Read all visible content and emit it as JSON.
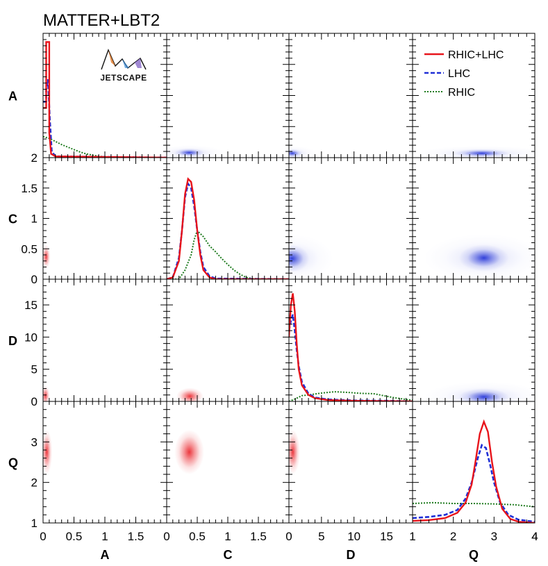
{
  "figure_title": "MATTER+LBT2",
  "logo_text": "JETSCAPE",
  "colors": {
    "rhic_lhc": "#e8141b",
    "lhc": "#1f2fd6",
    "rhic": "#1d7a1d"
  },
  "chart_data": {
    "type": "corner",
    "parameters": [
      "A",
      "C",
      "D",
      "Q"
    ],
    "ranges": {
      "A": [
        0,
        2
      ],
      "C": [
        0,
        2
      ],
      "D": [
        0,
        19
      ],
      "Q": [
        1,
        4
      ]
    },
    "tick_labels": {
      "A": [
        "0",
        "0.5",
        "1",
        "1.5"
      ],
      "C": [
        "0",
        "0.5",
        "1",
        "1.5"
      ],
      "D": [
        "0",
        "5",
        "10",
        "15"
      ],
      "Q": [
        "1",
        "2",
        "3",
        "4"
      ]
    },
    "tick_values": {
      "A": [
        0,
        0.5,
        1,
        1.5
      ],
      "C": [
        0,
        0.5,
        1,
        1.5
      ],
      "D": [
        0,
        5,
        10,
        15
      ],
      "Q": [
        1,
        2,
        3,
        4
      ]
    },
    "diag_y_ticks": {
      "C": {
        "values": [
          0,
          0.5,
          1,
          1.5,
          2
        ],
        "labels": [
          "0",
          "0.5",
          "1",
          "1.5",
          "2"
        ],
        "ymax": 2
      },
      "D": {
        "values": [
          0,
          5,
          10,
          15
        ],
        "labels": [
          "0",
          "5",
          "10",
          "15"
        ],
        "ymax": 19
      },
      "Q": {
        "values": [
          1,
          2,
          3
        ],
        "labels": [
          "1",
          "2",
          "3"
        ],
        "ymin": 1,
        "ymax": 4
      }
    },
    "legend": [
      {
        "key": "rhic_lhc",
        "label": "RHIC+LHC",
        "style": "solid"
      },
      {
        "key": "lhc",
        "label": "LHC",
        "style": "dashed"
      },
      {
        "key": "rhic",
        "label": "RHIC",
        "style": "dotted"
      }
    ],
    "diagonal": {
      "A": {
        "ymax": 10,
        "rhic_lhc": [
          [
            0,
            4
          ],
          [
            0.05,
            4
          ],
          [
            0.05,
            9.3
          ],
          [
            0.1,
            9.3
          ],
          [
            0.1,
            2
          ],
          [
            0.13,
            0.3
          ],
          [
            0.2,
            0.1
          ],
          [
            2,
            0
          ]
        ],
        "lhc": [
          [
            0,
            4.5
          ],
          [
            0.05,
            4.5
          ],
          [
            0.05,
            5.5
          ],
          [
            0.08,
            6.3
          ],
          [
            0.11,
            3
          ],
          [
            0.14,
            0.5
          ],
          [
            0.2,
            0.1
          ],
          [
            2,
            0
          ]
        ],
        "rhic": [
          [
            0,
            1.7
          ],
          [
            0.1,
            1.55
          ],
          [
            0.2,
            1.3
          ],
          [
            0.3,
            1.05
          ],
          [
            0.4,
            0.85
          ],
          [
            0.5,
            0.65
          ],
          [
            0.6,
            0.45
          ],
          [
            0.7,
            0.3
          ],
          [
            0.8,
            0.2
          ],
          [
            0.9,
            0.12
          ],
          [
            1.0,
            0.06
          ],
          [
            1.1,
            0.03
          ],
          [
            1.3,
            0.01
          ],
          [
            2,
            0
          ]
        ]
      },
      "C": {
        "rhic_lhc": [
          [
            0,
            0
          ],
          [
            0.1,
            0.03
          ],
          [
            0.2,
            0.3
          ],
          [
            0.25,
            0.8
          ],
          [
            0.3,
            1.4
          ],
          [
            0.35,
            1.65
          ],
          [
            0.4,
            1.6
          ],
          [
            0.45,
            1.3
          ],
          [
            0.5,
            0.8
          ],
          [
            0.55,
            0.4
          ],
          [
            0.6,
            0.15
          ],
          [
            0.7,
            0.03
          ],
          [
            0.8,
            0
          ],
          [
            2,
            0
          ]
        ],
        "lhc": [
          [
            0,
            0
          ],
          [
            0.1,
            0.03
          ],
          [
            0.2,
            0.35
          ],
          [
            0.25,
            0.8
          ],
          [
            0.3,
            1.35
          ],
          [
            0.35,
            1.57
          ],
          [
            0.4,
            1.5
          ],
          [
            0.45,
            1.2
          ],
          [
            0.5,
            0.8
          ],
          [
            0.55,
            0.45
          ],
          [
            0.6,
            0.2
          ],
          [
            0.7,
            0.05
          ],
          [
            0.8,
            0.01
          ],
          [
            2,
            0
          ]
        ],
        "rhic": [
          [
            0,
            0
          ],
          [
            0.2,
            0
          ],
          [
            0.3,
            0.15
          ],
          [
            0.4,
            0.4
          ],
          [
            0.45,
            0.65
          ],
          [
            0.5,
            0.8
          ],
          [
            0.6,
            0.7
          ],
          [
            0.7,
            0.55
          ],
          [
            0.8,
            0.45
          ],
          [
            0.9,
            0.34
          ],
          [
            1.0,
            0.24
          ],
          [
            1.1,
            0.15
          ],
          [
            1.2,
            0.08
          ],
          [
            1.3,
            0.03
          ],
          [
            1.4,
            0.01
          ],
          [
            1.6,
            0
          ],
          [
            2,
            0
          ]
        ]
      },
      "D": {
        "rhic_lhc": [
          [
            0,
            10
          ],
          [
            0.3,
            15
          ],
          [
            0.6,
            16.8
          ],
          [
            0.9,
            14
          ],
          [
            1.2,
            9
          ],
          [
            1.5,
            5
          ],
          [
            2,
            2.5
          ],
          [
            3,
            1
          ],
          [
            4,
            0.5
          ],
          [
            6,
            0.2
          ],
          [
            10,
            0.1
          ],
          [
            19,
            0
          ]
        ],
        "lhc": [
          [
            0,
            11
          ],
          [
            0.3,
            12.5
          ],
          [
            0.6,
            13.5
          ],
          [
            0.9,
            11
          ],
          [
            1.2,
            8
          ],
          [
            1.5,
            5.5
          ],
          [
            2,
            3
          ],
          [
            3,
            1.2
          ],
          [
            4,
            0.6
          ],
          [
            6,
            0.3
          ],
          [
            10,
            0.15
          ],
          [
            15,
            0.1
          ],
          [
            19,
            0
          ]
        ],
        "rhic": [
          [
            0,
            0
          ],
          [
            1,
            0.4
          ],
          [
            2,
            0.9
          ],
          [
            3,
            1.0
          ],
          [
            5,
            1.3
          ],
          [
            7,
            1.5
          ],
          [
            9,
            1.4
          ],
          [
            11,
            1.25
          ],
          [
            13,
            1.2
          ],
          [
            14,
            1.0
          ],
          [
            15,
            0.8
          ],
          [
            16,
            0.6
          ],
          [
            17,
            0.45
          ],
          [
            18,
            0.3
          ],
          [
            19,
            0.2
          ]
        ]
      },
      "Q": {
        "rhic_lhc": [
          [
            1,
            1.05
          ],
          [
            1.4,
            1.07
          ],
          [
            1.8,
            1.12
          ],
          [
            2.1,
            1.25
          ],
          [
            2.3,
            1.5
          ],
          [
            2.45,
            1.95
          ],
          [
            2.55,
            2.55
          ],
          [
            2.65,
            3.2
          ],
          [
            2.75,
            3.5
          ],
          [
            2.85,
            3.25
          ],
          [
            2.95,
            2.5
          ],
          [
            3.05,
            1.9
          ],
          [
            3.2,
            1.35
          ],
          [
            3.4,
            1.1
          ],
          [
            3.6,
            1.03
          ],
          [
            4,
            1.0
          ]
        ],
        "lhc": [
          [
            1,
            1.12
          ],
          [
            1.4,
            1.15
          ],
          [
            1.8,
            1.2
          ],
          [
            2.1,
            1.32
          ],
          [
            2.3,
            1.6
          ],
          [
            2.45,
            2.0
          ],
          [
            2.6,
            2.6
          ],
          [
            2.7,
            2.92
          ],
          [
            2.8,
            2.85
          ],
          [
            2.9,
            2.45
          ],
          [
            3.0,
            2.0
          ],
          [
            3.15,
            1.5
          ],
          [
            3.35,
            1.2
          ],
          [
            3.6,
            1.08
          ],
          [
            4,
            1.03
          ]
        ],
        "rhic": [
          [
            1,
            1.48
          ],
          [
            1.5,
            1.5
          ],
          [
            2,
            1.48
          ],
          [
            2.5,
            1.48
          ],
          [
            3,
            1.47
          ],
          [
            3.5,
            1.45
          ],
          [
            4,
            1.4
          ]
        ]
      }
    },
    "posteriors_2d": [
      {
        "x": "A",
        "y": "C",
        "mean": [
          0.05,
          0.37
        ],
        "sd": [
          0.03,
          0.09
        ],
        "series": "rhic_lhc"
      },
      {
        "x": "A",
        "y": "D",
        "mean": [
          0.04,
          0.9
        ],
        "sd": [
          0.03,
          0.7
        ],
        "series": "rhic_lhc"
      },
      {
        "x": "A",
        "y": "Q",
        "mean": [
          0.06,
          2.75
        ],
        "sd": [
          0.04,
          0.25
        ],
        "series": "rhic_lhc"
      },
      {
        "x": "C",
        "y": "D",
        "mean": [
          0.38,
          0.8
        ],
        "sd": [
          0.1,
          0.6
        ],
        "series": "rhic_lhc"
      },
      {
        "x": "C",
        "y": "Q",
        "mean": [
          0.37,
          2.75
        ],
        "sd": [
          0.11,
          0.25
        ],
        "series": "rhic_lhc"
      },
      {
        "x": "D",
        "y": "Q",
        "mean": [
          0.6,
          2.75
        ],
        "sd": [
          0.5,
          0.25
        ],
        "series": "rhic_lhc"
      },
      {
        "x": "C",
        "y": "A",
        "mean": [
          0.37,
          0.08
        ],
        "sd": [
          0.11,
          0.03
        ],
        "series": "lhc"
      },
      {
        "x": "D",
        "y": "A",
        "mean": [
          0.5,
          0.07
        ],
        "sd": [
          0.7,
          0.03
        ],
        "series": "lhc"
      },
      {
        "x": "Q",
        "y": "A",
        "mean": [
          2.7,
          0.07
        ],
        "sd": [
          0.3,
          0.03
        ],
        "series": "lhc"
      },
      {
        "x": "D",
        "y": "C",
        "mean": [
          0.5,
          0.34
        ],
        "sd": [
          1.2,
          0.1
        ],
        "series": "lhc"
      },
      {
        "x": "Q",
        "y": "C",
        "mean": [
          2.75,
          0.35
        ],
        "sd": [
          0.28,
          0.1
        ],
        "series": "lhc"
      },
      {
        "x": "Q",
        "y": "D",
        "mean": [
          2.75,
          0.7
        ],
        "sd": [
          0.28,
          0.6
        ],
        "series": "lhc"
      }
    ]
  }
}
